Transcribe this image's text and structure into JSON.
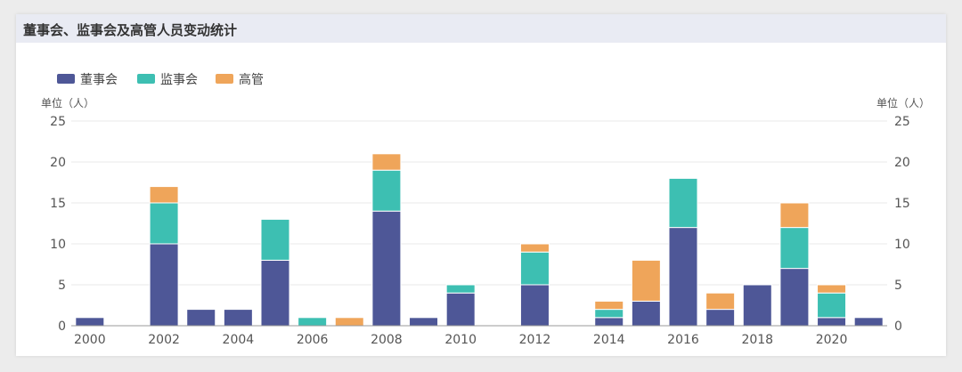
{
  "panel": {
    "title": "董事会、监事会及高管人员变动统计"
  },
  "chart_data": {
    "type": "bar",
    "stacked": true,
    "categories": [
      "2000",
      "2001",
      "2002",
      "2003",
      "2004",
      "2005",
      "2006",
      "2007",
      "2008",
      "2009",
      "2010",
      "2011",
      "2012",
      "2013",
      "2014",
      "2015",
      "2016",
      "2017",
      "2018",
      "2019",
      "2020",
      "2021"
    ],
    "x_tick_labels": [
      "2000",
      "2002",
      "2004",
      "2006",
      "2008",
      "2010",
      "2012",
      "2014",
      "2016",
      "2018",
      "2020"
    ],
    "series": [
      {
        "name": "董事会",
        "color": "#4e5797",
        "values": [
          1,
          0,
          10,
          2,
          2,
          8,
          0,
          0,
          14,
          1,
          4,
          0,
          5,
          0,
          1,
          3,
          12,
          2,
          5,
          7,
          1,
          1
        ]
      },
      {
        "name": "监事会",
        "color": "#3dbfb2",
        "values": [
          0,
          0,
          5,
          0,
          0,
          5,
          1,
          0,
          5,
          0,
          1,
          0,
          4,
          0,
          1,
          0,
          6,
          0,
          0,
          5,
          3,
          0
        ]
      },
      {
        "name": "高管",
        "color": "#efa55a",
        "values": [
          0,
          0,
          2,
          0,
          0,
          0,
          0,
          1,
          2,
          0,
          0,
          0,
          1,
          0,
          1,
          5,
          0,
          2,
          0,
          3,
          1,
          0
        ]
      }
    ],
    "ylim": [
      0,
      25
    ],
    "y_ticks": [
      0,
      5,
      10,
      15,
      20,
      25
    ],
    "y_unit_left": "单位（人）",
    "y_unit_right": "单位（人）",
    "grid": true,
    "legend_position": "top-left"
  }
}
